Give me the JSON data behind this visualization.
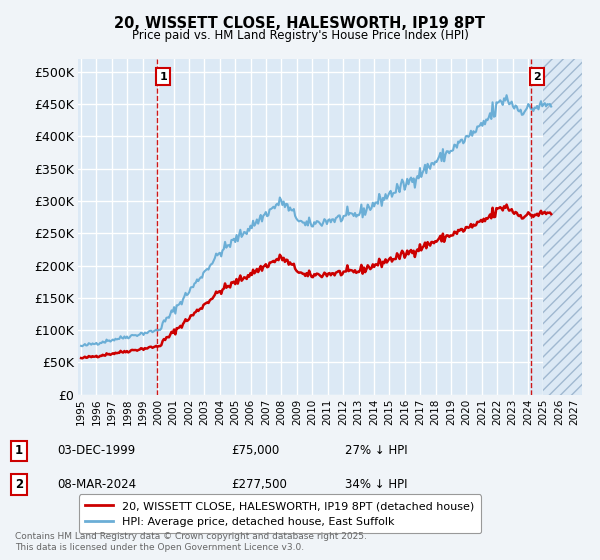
{
  "title1": "20, WISSETT CLOSE, HALESWORTH, IP19 8PT",
  "title2": "Price paid vs. HM Land Registry's House Price Index (HPI)",
  "ylabel_ticks": [
    "£0",
    "£50K",
    "£100K",
    "£150K",
    "£200K",
    "£250K",
    "£300K",
    "£350K",
    "£400K",
    "£450K",
    "£500K"
  ],
  "ytick_vals": [
    0,
    50000,
    100000,
    150000,
    200000,
    250000,
    300000,
    350000,
    400000,
    450000,
    500000
  ],
  "ylim": [
    0,
    520000
  ],
  "xlim_start": 1994.8,
  "xlim_end": 2027.5,
  "xticks": [
    1995,
    1996,
    1997,
    1998,
    1999,
    2000,
    2001,
    2002,
    2003,
    2004,
    2005,
    2006,
    2007,
    2008,
    2009,
    2010,
    2011,
    2012,
    2013,
    2014,
    2015,
    2016,
    2017,
    2018,
    2019,
    2020,
    2021,
    2022,
    2023,
    2024,
    2025,
    2026,
    2027
  ],
  "hpi_color": "#6baed6",
  "price_color": "#cc0000",
  "background_color": "#dce9f5",
  "grid_color": "#ffffff",
  "fig_bg": "#f0f4f8",
  "sale1_x": 1999.92,
  "sale1_y": 75000,
  "sale2_x": 2024.19,
  "sale2_y": 277500,
  "annotation1": "1",
  "annotation2": "2",
  "legend_line1": "20, WISSETT CLOSE, HALESWORTH, IP19 8PT (detached house)",
  "legend_line2": "HPI: Average price, detached house, East Suffolk",
  "note1_label": "1",
  "note1_date": "03-DEC-1999",
  "note1_price": "£75,000",
  "note1_hpi": "27% ↓ HPI",
  "note2_label": "2",
  "note2_date": "08-MAR-2024",
  "note2_price": "£277,500",
  "note2_hpi": "34% ↓ HPI",
  "footer": "Contains HM Land Registry data © Crown copyright and database right 2025.\nThis data is licensed under the Open Government Licence v3.0.",
  "hatch_region_start": 2025.0,
  "hatch_region_end": 2027.5
}
